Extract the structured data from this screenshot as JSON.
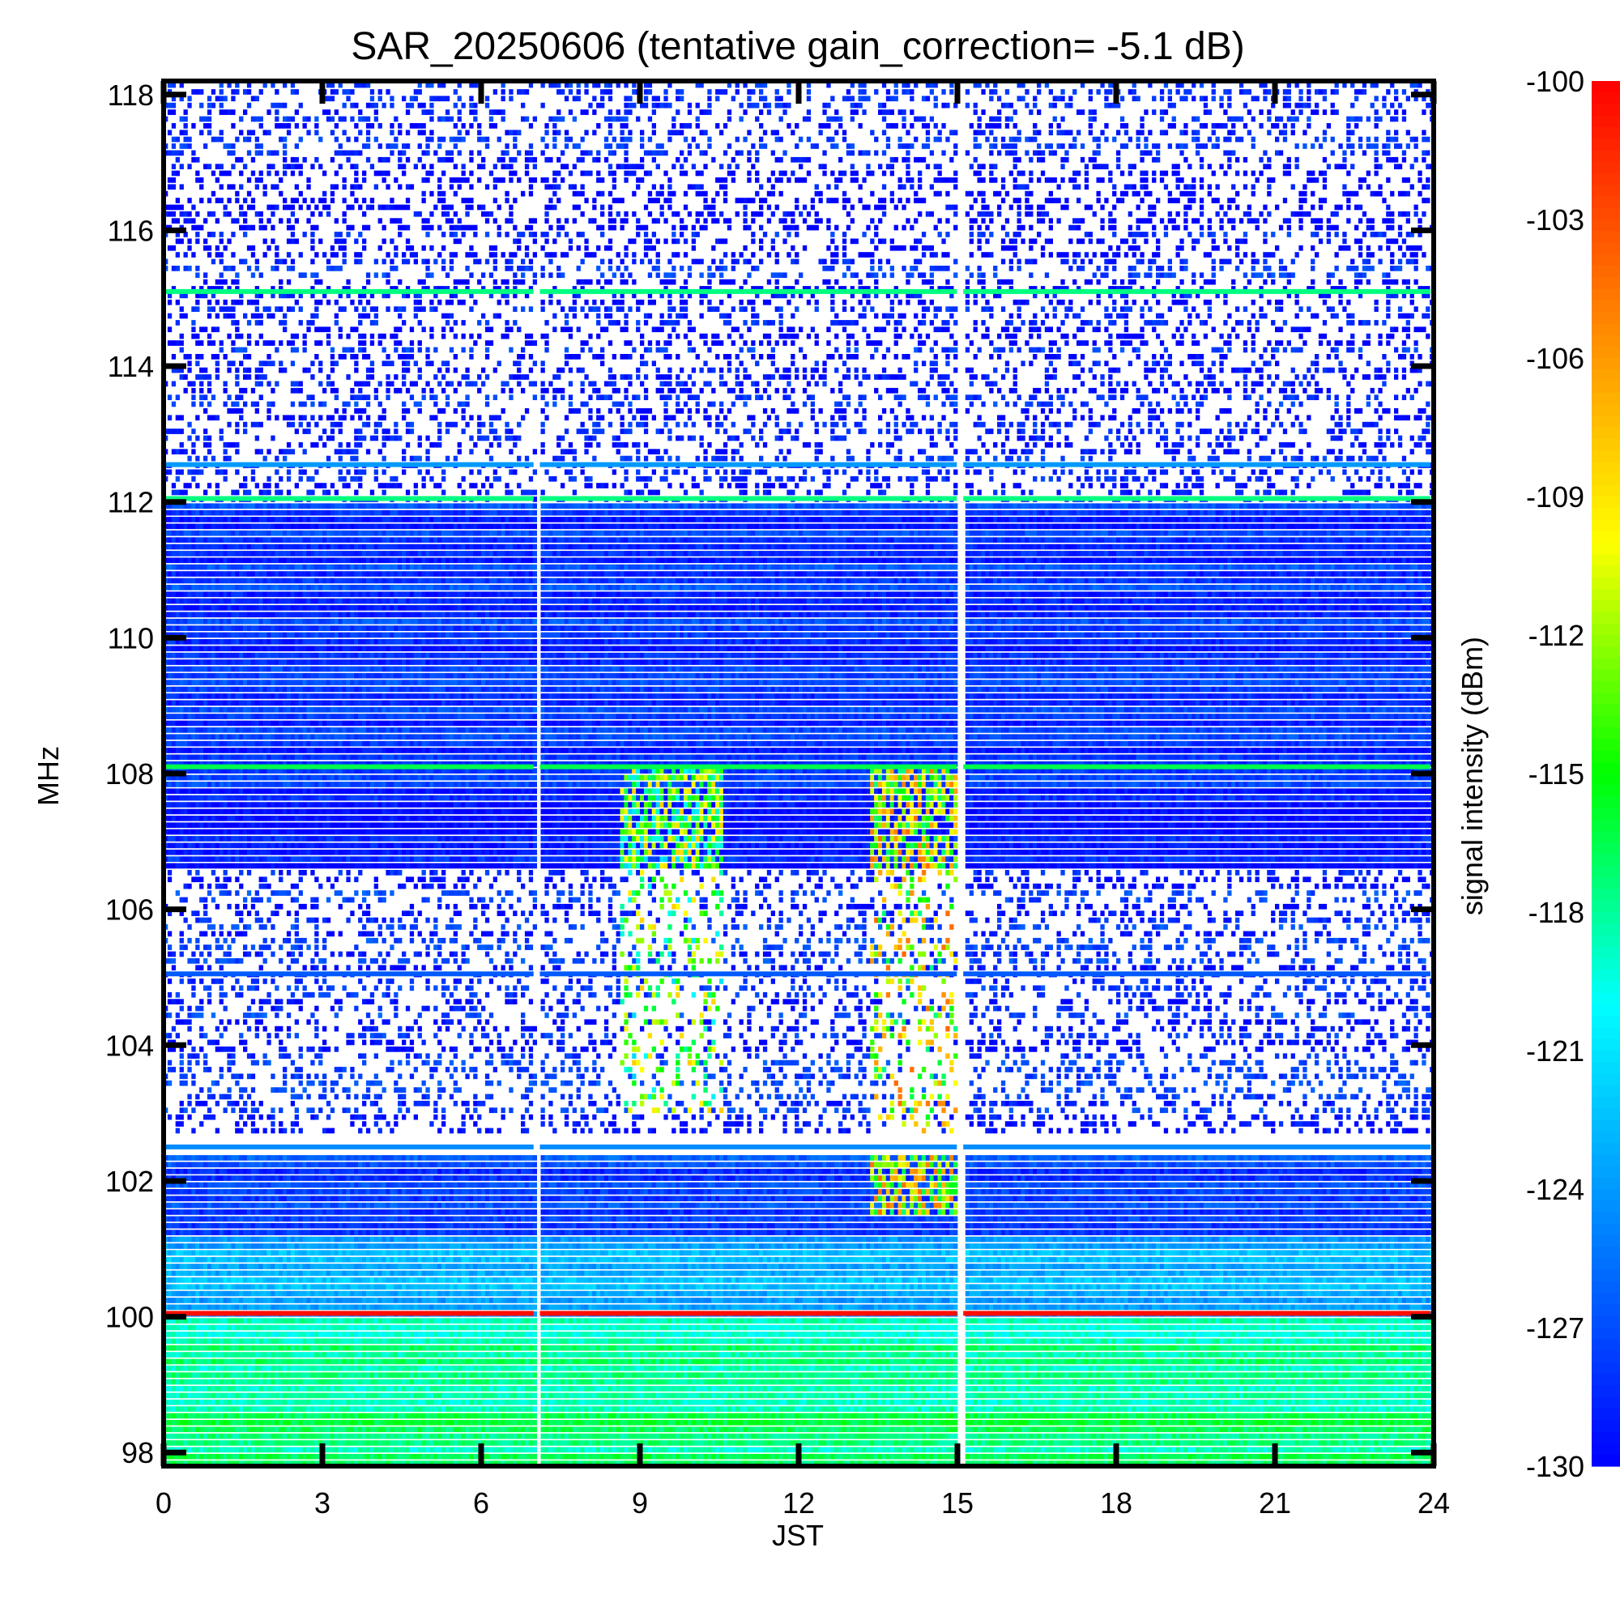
{
  "chart_data": {
    "type": "heatmap",
    "title": "SAR_20250606 (tentative gain_correction= -5.1 dB)",
    "xlabel": "JST",
    "ylabel": "MHz",
    "colorbar_label": "signal intensity (dBm)",
    "xlim": [
      0,
      24
    ],
    "ylim": [
      97.8,
      118.2
    ],
    "x_ticks": [
      0,
      3,
      6,
      9,
      12,
      15,
      18,
      21,
      24
    ],
    "x_tick_labels": [
      "0",
      "3",
      "6",
      "9",
      "12",
      "15",
      "18",
      "21",
      "24"
    ],
    "y_ticks": [
      98,
      100,
      102,
      104,
      106,
      108,
      110,
      112,
      114,
      116,
      118
    ],
    "y_tick_labels": [
      "98",
      "100",
      "102",
      "104",
      "106",
      "108",
      "110",
      "112",
      "114",
      "116",
      "118"
    ],
    "colorbar_range": [
      -130,
      -100
    ],
    "colorbar_ticks": [
      -100,
      -103,
      -106,
      -109,
      -112,
      -115,
      -118,
      -121,
      -124,
      -127,
      -130
    ],
    "colorbar_tick_labels": [
      "-100",
      "-103",
      "-106",
      "-109",
      "-112",
      "-115",
      "-118",
      "-121",
      "-124",
      "-127",
      "-130"
    ],
    "colormap": [
      "#0000ff",
      "#0080ff",
      "#00ffff",
      "#00ff00",
      "#ffff00",
      "#ff8000",
      "#ff0000"
    ],
    "data_gaps_jst": [
      7.05,
      15.05
    ],
    "bands": [
      {
        "f_low": 97.8,
        "f_high": 99.0,
        "level_dbm": -117.5,
        "coverage": "dense"
      },
      {
        "f_low": 99.0,
        "f_high": 100.0,
        "level_dbm": -118.5,
        "coverage": "dense"
      },
      {
        "f_low": 100.0,
        "f_high": 101.2,
        "level_dbm": -123.5,
        "coverage": "dense"
      },
      {
        "f_low": 101.2,
        "f_high": 102.4,
        "level_dbm": -127.5,
        "coverage": "dense"
      },
      {
        "f_low": 102.7,
        "f_high": 106.6,
        "level_dbm": -128.5,
        "coverage": "sparse"
      },
      {
        "f_low": 106.6,
        "f_high": 108.0,
        "level_dbm": -128.5,
        "coverage": "dense"
      },
      {
        "f_low": 108.0,
        "f_high": 112.0,
        "level_dbm": -128.0,
        "coverage": "dense"
      },
      {
        "f_low": 112.0,
        "f_high": 118.2,
        "level_dbm": -129.0,
        "coverage": "sparse"
      }
    ],
    "persistent_lines": [
      {
        "freq_mhz": 100.05,
        "level_dbm": -100.5
      },
      {
        "freq_mhz": 108.1,
        "level_dbm": -116.5
      },
      {
        "freq_mhz": 112.05,
        "level_dbm": -117.5
      },
      {
        "freq_mhz": 115.1,
        "level_dbm": -117.5
      },
      {
        "freq_mhz": 102.5,
        "level_dbm": -124.5
      },
      {
        "freq_mhz": 105.05,
        "level_dbm": -126.5
      },
      {
        "freq_mhz": 112.55,
        "level_dbm": -124.0
      }
    ],
    "enhancement_events": [
      {
        "jst_start": 8.6,
        "jst_end": 10.5,
        "f_low": 103.0,
        "f_high": 108.0,
        "peak_dbm": -108
      },
      {
        "jst_start": 13.3,
        "jst_end": 15.0,
        "f_low": 101.5,
        "f_high": 108.0,
        "peak_dbm": -104
      }
    ]
  }
}
